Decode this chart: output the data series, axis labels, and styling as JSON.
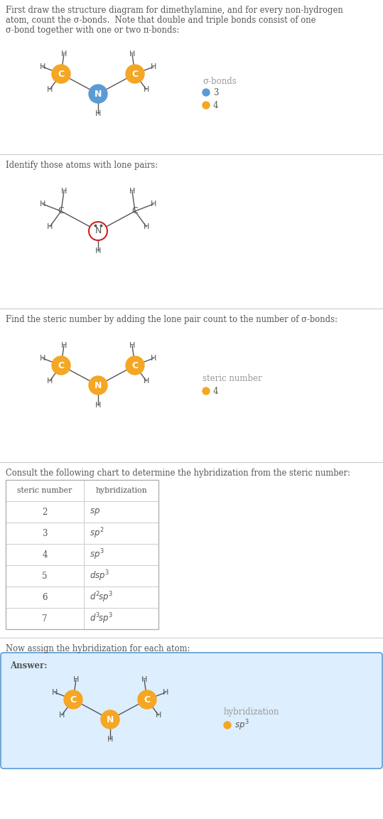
{
  "title_text1": "First draw the structure diagram for dimethylamine, and for every non-hydrogen",
  "title_text2": "atom, count the σ-bonds.  Note that double and triple bonds consist of one",
  "title_text3": "σ-bond together with one or two π-bonds:",
  "section2_text": "Identify those atoms with lone pairs:",
  "section3_text": "Find the steric number by adding the lone pair count to the number of σ-bonds:",
  "section4_text": "Consult the following chart to determine the hybridization from the steric number:",
  "section5_text": "Now assign the hybridization for each atom:",
  "answer_label": "Answer:",
  "bg_color": "#ffffff",
  "text_color": "#555555",
  "C_color": "#f5a623",
  "N_color_filled": "#5b9bd5",
  "N_color_outline": "#cc2222",
  "N_color_steric": "#f5a623",
  "bond_color": "#555555",
  "legend_blue": "#5b9bd5",
  "legend_orange": "#f5a623",
  "answer_box_color": "#ddeeff",
  "answer_border_color": "#5b9bd5",
  "divider_color": "#cccccc",
  "table_border_color": "#aaaaaa",
  "table_line_color": "#cccccc"
}
